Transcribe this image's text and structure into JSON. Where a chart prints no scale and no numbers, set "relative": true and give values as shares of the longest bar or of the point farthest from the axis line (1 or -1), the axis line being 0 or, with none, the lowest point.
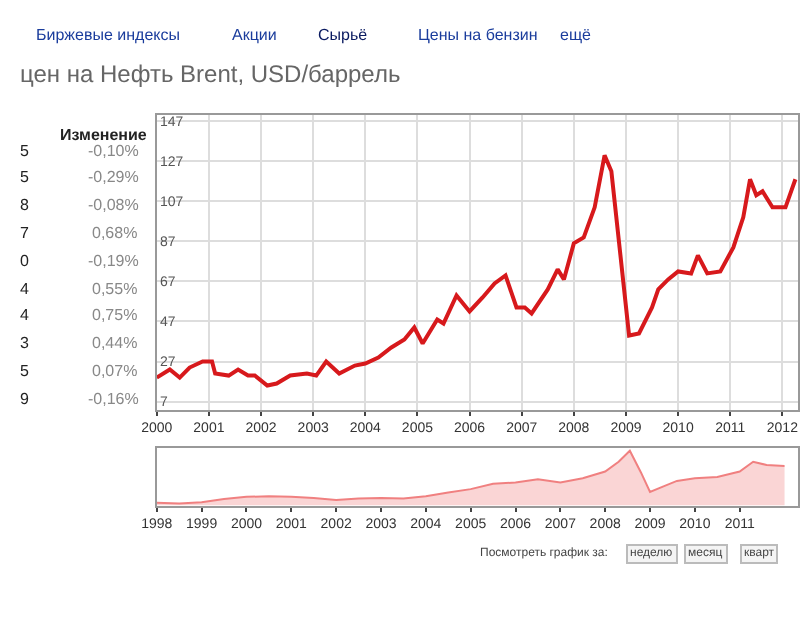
{
  "chart_data": [
    {
      "type": "other",
      "annotations": [
        "Биржевые индексы",
        "Акции",
        "Сырьё",
        "Цены на бензин",
        "ещё"
      ]
    },
    {
      "type": "line",
      "title": "цен на Нефть Brent, USD/баррель",
      "x": [
        2000.0,
        2000.25,
        2000.44,
        2000.63,
        2000.88,
        2001.06,
        2001.12,
        2001.38,
        2001.56,
        2001.75,
        2001.88,
        2002.12,
        2002.3,
        2002.56,
        2002.88,
        2003.06,
        2003.25,
        2003.5,
        2003.8,
        2004.0,
        2004.25,
        2004.5,
        2004.75,
        2004.94,
        2005.1,
        2005.38,
        2005.5,
        2005.75,
        2006.0,
        2006.25,
        2006.48,
        2006.69,
        2006.9,
        2007.06,
        2007.19,
        2007.5,
        2007.69,
        2007.81,
        2008.0,
        2008.19,
        2008.4,
        2008.59,
        2008.72,
        2009.06,
        2009.25,
        2009.5,
        2009.62,
        2009.81,
        2010.0,
        2010.25,
        2010.38,
        2010.56,
        2010.81,
        2011.06,
        2011.25,
        2011.38,
        2011.5,
        2011.62,
        2011.81,
        2012.06,
        2012.25
      ],
      "series": [
        {
          "color": "#d7191c",
          "values": [
            19,
            23,
            19,
            24,
            27,
            27,
            21,
            20,
            23,
            20,
            20,
            15,
            16,
            20,
            21,
            20,
            27,
            21,
            25,
            26,
            29,
            34,
            38,
            44,
            36,
            48,
            46,
            60,
            52,
            59,
            66,
            70,
            54,
            54,
            51,
            63,
            73,
            68,
            86,
            89,
            104,
            130,
            122,
            40,
            41,
            54,
            63,
            68,
            72,
            71,
            80,
            71,
            72,
            84,
            99,
            118,
            110,
            112,
            104,
            104,
            118
          ]
        }
      ],
      "xlim": [
        2000,
        2012.3
      ],
      "xticks": [
        2000,
        2001,
        2002,
        2003,
        2004,
        2005,
        2006,
        2007,
        2008,
        2009,
        2010,
        2011,
        2012
      ],
      "ylim": [
        3,
        150
      ],
      "yticks": [
        7,
        27,
        47,
        67,
        87,
        107,
        127,
        147
      ],
      "grid": true,
      "marker": "none",
      "line_style": "solid"
    },
    {
      "type": "other",
      "annotations": [
        "Изменение",
        "5",
        "-0,10%",
        "5",
        "-0,29%",
        "8",
        "-0,08%",
        "7",
        "0,68%",
        "0",
        "-0,19%",
        "4",
        "0,55%",
        "4",
        "0,75%",
        "3",
        "0,44%",
        "5",
        "0,07%",
        "9",
        "-0,16%"
      ]
    },
    {
      "type": "area",
      "relative": true,
      "x": [
        1998.0,
        1998.5,
        1999.0,
        1999.5,
        2000.0,
        2000.5,
        2001.0,
        2001.5,
        2002.0,
        2002.5,
        2003.0,
        2003.5,
        2004.0,
        2004.5,
        2005.0,
        2005.5,
        2006.0,
        2006.5,
        2007.0,
        2007.5,
        2008.0,
        2008.3,
        2008.55,
        2008.8,
        2009.0,
        2009.3,
        2009.6,
        2010.0,
        2010.5,
        2011.0,
        2011.3,
        2011.6,
        2012.0
      ],
      "series": [
        {
          "color": "#f08080",
          "values": [
            0.05,
            0.04,
            0.06,
            0.12,
            0.16,
            0.17,
            0.16,
            0.14,
            0.1,
            0.13,
            0.14,
            0.13,
            0.17,
            0.24,
            0.3,
            0.4,
            0.42,
            0.48,
            0.42,
            0.5,
            0.62,
            0.8,
            1,
            0.6,
            0.25,
            0.35,
            0.45,
            0.5,
            0.52,
            0.62,
            0.8,
            0.74,
            0.72
          ]
        }
      ],
      "xlim": [
        1998,
        2012.3
      ],
      "xticks": [
        1998,
        1999,
        2000,
        2001,
        2002,
        2003,
        2004,
        2005,
        2006,
        2007,
        2008,
        2009,
        2010,
        2011
      ],
      "grid": false
    },
    {
      "type": "other",
      "annotations": [
        "Посмотреть график за:",
        "неделю",
        "месяц",
        "кварт"
      ]
    }
  ]
}
